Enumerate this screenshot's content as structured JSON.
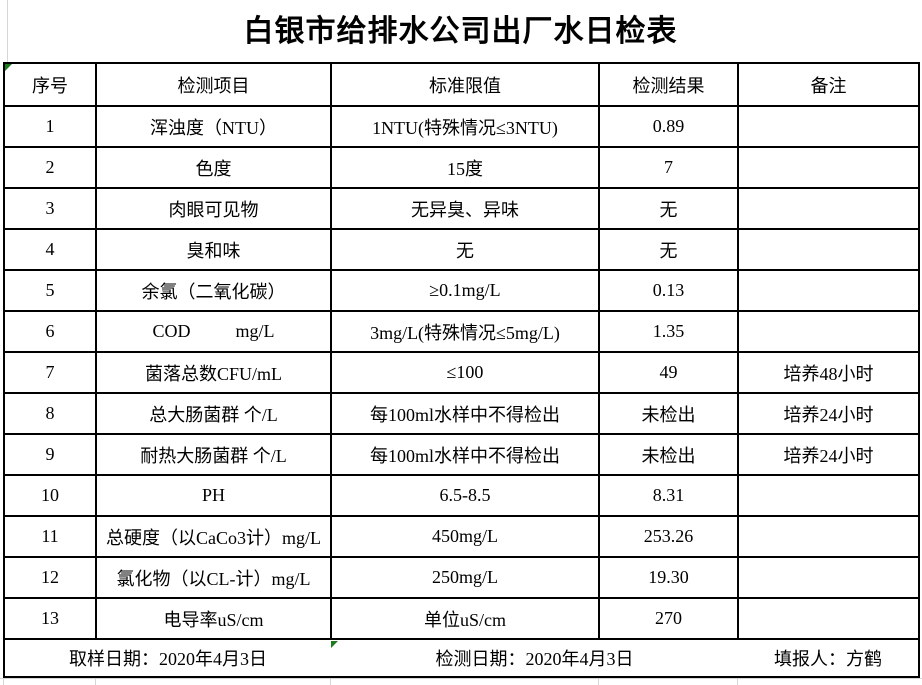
{
  "title": "白银市给排水公司出厂水日检表",
  "table": {
    "headers": [
      "序号",
      "检测项目",
      "标准限值",
      "检测结果",
      "备注"
    ],
    "rows": [
      [
        "1",
        "浑浊度（NTU）",
        "1NTU(特殊情况≤3NTU)",
        "0.89",
        ""
      ],
      [
        "2",
        "色度",
        "15度",
        "7",
        ""
      ],
      [
        "3",
        "肉眼可见物",
        "无异臭、异味",
        "无",
        ""
      ],
      [
        "4",
        "臭和味",
        "无",
        "无",
        ""
      ],
      [
        "5",
        "余氯（二氧化碳）",
        "≥0.1mg/L",
        "0.13",
        ""
      ],
      [
        "6",
        "COD          mg/L",
        "3mg/L(特殊情况≤5mg/L)",
        "1.35",
        ""
      ],
      [
        "7",
        "菌落总数CFU/mL",
        "≤100",
        "49",
        "培养48小时"
      ],
      [
        "8",
        "总大肠菌群 个/L",
        "每100ml水样中不得检出",
        "未检出",
        "培养24小时"
      ],
      [
        "9",
        "耐热大肠菌群 个/L",
        "每100ml水样中不得检出",
        "未检出",
        "培养24小时"
      ],
      [
        "10",
        "PH",
        "6.5-8.5",
        "8.31",
        ""
      ],
      [
        "11",
        "总硬度（以CaCo3计）mg/L",
        "450mg/L",
        "253.26",
        ""
      ],
      [
        "12",
        "氯化物（以CL-计）mg/L",
        "250mg/L",
        "19.30",
        ""
      ],
      [
        "13",
        "电导率uS/cm",
        "单位uS/cm",
        "270",
        ""
      ]
    ],
    "footer": {
      "sample_date": "取样日期：2020年4月3日",
      "test_date": "检测日期：2020年4月3日",
      "reporter": "填报人：方鹤"
    }
  },
  "colors": {
    "border": "#000000",
    "gridline": "#d6d6d6",
    "error_indicator_green": "#1e7a1e"
  }
}
